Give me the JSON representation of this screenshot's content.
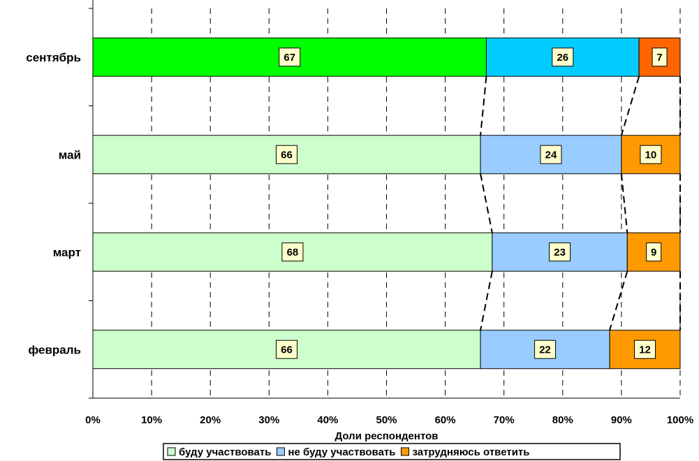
{
  "chart_data": {
    "type": "bar",
    "orientation": "horizontal",
    "stacked": true,
    "percent_stacked": true,
    "categories": [
      "сентябрь",
      "май",
      "март",
      "февраль"
    ],
    "series": [
      {
        "name": "буду участвовать",
        "values": [
          67,
          66,
          68,
          66
        ],
        "colors": [
          "#00ff00",
          "#ccffcc",
          "#ccffcc",
          "#ccffcc"
        ]
      },
      {
        "name": "не буду участвовать",
        "values": [
          26,
          24,
          23,
          22
        ],
        "colors": [
          "#00ccff",
          "#99ccff",
          "#99ccff",
          "#99ccff"
        ]
      },
      {
        "name": "затрудняюсь ответить",
        "values": [
          7,
          10,
          9,
          12
        ],
        "colors": [
          "#ff6600",
          "#ff9900",
          "#ff9900",
          "#ff9900"
        ]
      }
    ],
    "xlabel": "Доли респондентов",
    "xticks": [
      "0%",
      "10%",
      "20%",
      "30%",
      "40%",
      "50%",
      "60%",
      "70%",
      "80%",
      "90%",
      "100%"
    ],
    "xlim": [
      0,
      100
    ],
    "grid": "vertical dashed",
    "series_lines": true,
    "legend": "bottom",
    "label_box_color": "#ffffcc",
    "legend_swatch_colors": [
      "#ccffcc",
      "#99ccff",
      "#ff9900"
    ]
  }
}
